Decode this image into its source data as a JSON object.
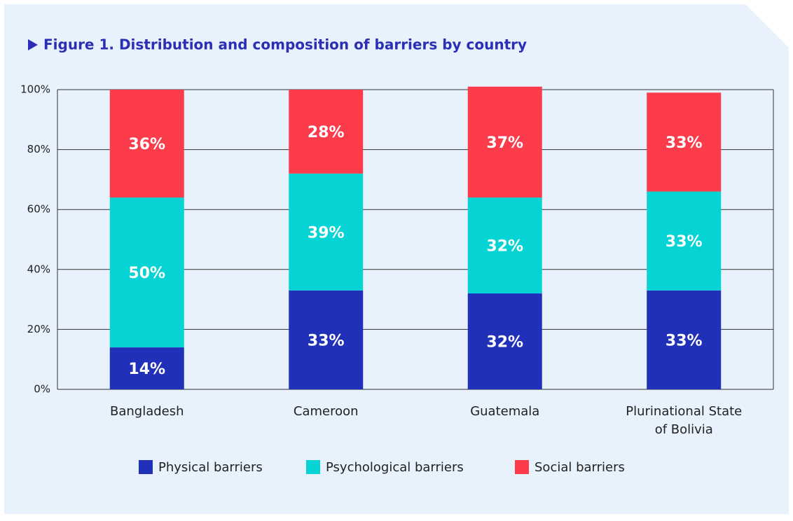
{
  "chart_data": {
    "type": "stacked_bar",
    "title": "Figure 1. Distribution and composition of barriers by country",
    "categories": [
      "Bangladesh",
      "Cameroon",
      "Guatemala",
      "Plurinational State of Bolivia"
    ],
    "series": [
      {
        "name": "Physical barriers",
        "color": "#2130b8",
        "values": [
          14,
          33,
          32,
          33
        ],
        "value_labels": [
          "14%",
          "33%",
          "32%",
          "33%"
        ]
      },
      {
        "name": "Psychological barriers",
        "color": "#06d4d4",
        "values": [
          50,
          39,
          32,
          33
        ],
        "value_labels": [
          "50%",
          "39%",
          "32%",
          "33%"
        ]
      },
      {
        "name": "Social barriers",
        "color": "#fc3b4b",
        "values": [
          36,
          28,
          37,
          33
        ],
        "value_labels": [
          "36%",
          "28%",
          "37%",
          "33%"
        ]
      }
    ],
    "ylim": [
      0,
      100
    ],
    "yticks": [
      {
        "value": 0,
        "label": "0%"
      },
      {
        "value": 20,
        "label": "20%"
      },
      {
        "value": 40,
        "label": "40%"
      },
      {
        "value": 60,
        "label": "60%"
      },
      {
        "value": 80,
        "label": "80%"
      },
      {
        "value": 100,
        "label": "100%"
      }
    ],
    "grid": true,
    "legend": "bottom"
  }
}
